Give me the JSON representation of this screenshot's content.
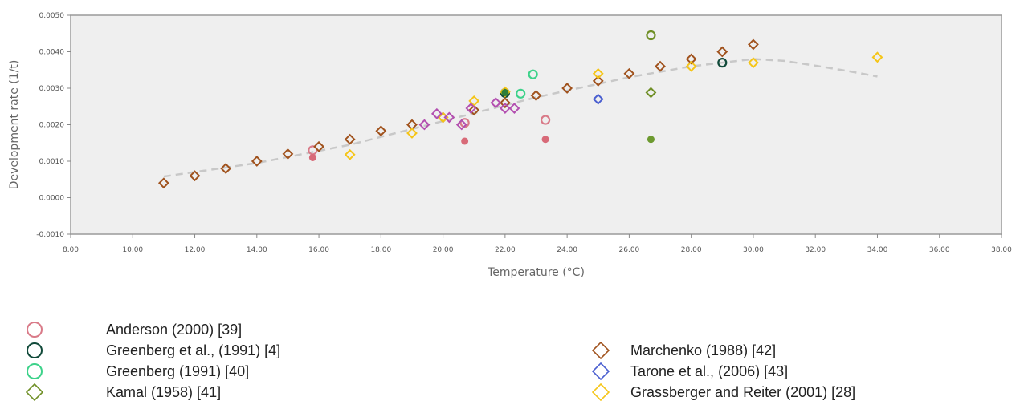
{
  "chart_data": {
    "type": "scatter",
    "xlabel": "Temperature (°C)",
    "ylabel": "Development rate (1/t)",
    "xlim": [
      8,
      38
    ],
    "ylim": [
      -0.001,
      0.005
    ],
    "x_ticks": [
      "8.00",
      "10.00",
      "12.00",
      "14.00",
      "16.00",
      "18.00",
      "20.00",
      "22.00",
      "24.00",
      "26.00",
      "28.00",
      "30.00",
      "32.00",
      "34.00",
      "36.00",
      "38.00"
    ],
    "y_ticks": [
      "-0.0010",
      "0.0000",
      "0.0010",
      "0.0020",
      "0.0030",
      "0.0040",
      "0.0050"
    ],
    "grid": false,
    "background": "#efefef",
    "legend_position": "bottom",
    "trend_line": {
      "style": "dashed",
      "color": "#c8c8c8",
      "points": [
        [
          11,
          0.00058
        ],
        [
          14,
          0.00095
        ],
        [
          17,
          0.00145
        ],
        [
          20,
          0.0021
        ],
        [
          23,
          0.00275
        ],
        [
          26,
          0.0033
        ],
        [
          28,
          0.0036
        ],
        [
          30,
          0.0038
        ],
        [
          31,
          0.00375
        ],
        [
          32,
          0.00362
        ],
        [
          33,
          0.00348
        ],
        [
          34,
          0.00332
        ]
      ]
    },
    "series": [
      {
        "name": "Anderson (2000) [39]",
        "marker": "circle",
        "color": "#d97a88",
        "points": [
          [
            15.8,
            0.0013
          ],
          [
            20.7,
            0.00205
          ],
          [
            23.3,
            0.00213
          ]
        ]
      },
      {
        "name": "Greenberg et al., (1991) [4]",
        "marker": "circle",
        "color": "#114a3a",
        "points": [
          [
            22,
            0.00287
          ],
          [
            29,
            0.0037
          ]
        ]
      },
      {
        "name": "Greenberg (1991) [40]",
        "marker": "circle",
        "color": "#3dd28a",
        "points": [
          [
            22.5,
            0.00285
          ],
          [
            22.9,
            0.00338
          ]
        ]
      },
      {
        "name": "Kamal (1958) [41]",
        "marker": "diamond",
        "color": "#6f8f26",
        "points": [
          [
            26.7,
            0.00288
          ]
        ]
      },
      {
        "name": "Marchenko (1988) [42]",
        "marker": "diamond",
        "color": "#a0521d",
        "points": [
          [
            11,
            0.0004
          ],
          [
            12,
            0.0006
          ],
          [
            13,
            0.0008
          ],
          [
            14,
            0.001
          ],
          [
            15,
            0.0012
          ],
          [
            16,
            0.0014
          ],
          [
            17,
            0.0016
          ],
          [
            18,
            0.00183
          ],
          [
            19,
            0.002
          ],
          [
            20,
            0.0022
          ],
          [
            21,
            0.0024
          ],
          [
            22,
            0.0026
          ],
          [
            23,
            0.0028
          ],
          [
            24,
            0.003
          ],
          [
            25,
            0.0032
          ],
          [
            26,
            0.0034
          ],
          [
            27,
            0.0036
          ],
          [
            28,
            0.0038
          ],
          [
            29,
            0.004
          ],
          [
            30,
            0.0042
          ]
        ]
      },
      {
        "name": "Tarone et al., (2006) [43]",
        "marker": "diamond",
        "color": "#4a5fd0",
        "points": [
          [
            25,
            0.0027
          ]
        ]
      },
      {
        "name": "Grassberger and Reiter (2001) [28]",
        "marker": "diamond",
        "color": "#f5c518",
        "points": [
          [
            17,
            0.00118
          ],
          [
            19,
            0.00177
          ],
          [
            20,
            0.0022
          ],
          [
            21,
            0.00265
          ],
          [
            22,
            0.0029
          ],
          [
            25,
            0.0034
          ],
          [
            28,
            0.0036
          ],
          [
            30,
            0.0037
          ],
          [
            34,
            0.00385
          ]
        ]
      },
      {
        "marker": "diamond",
        "color": "#b34fb0",
        "points": [
          [
            19.4,
            0.002
          ],
          [
            19.8,
            0.0023
          ],
          [
            20.2,
            0.0022
          ],
          [
            20.6,
            0.002
          ],
          [
            20.9,
            0.00245
          ],
          [
            21.7,
            0.0026
          ],
          [
            22,
            0.00245
          ],
          [
            22.3,
            0.00245
          ]
        ]
      },
      {
        "marker": "filled-circle",
        "color": "#d86a78",
        "points": [
          [
            15.8,
            0.0011
          ],
          [
            20.7,
            0.00155
          ],
          [
            23.3,
            0.0016
          ]
        ]
      },
      {
        "marker": "filled-circle",
        "color": "#6d9a30",
        "points": [
          [
            26.7,
            0.0016
          ]
        ]
      },
      {
        "marker": "filled-circle",
        "color": "#2e7d3a",
        "points": [
          [
            22,
            0.00288
          ]
        ]
      },
      {
        "marker": "circle",
        "color": "#6f8f26",
        "points": [
          [
            26.7,
            0.00445
          ]
        ]
      }
    ]
  },
  "legend_left": [
    {
      "label": "Anderson (2000) [39]",
      "icon": "circle-icon",
      "color": "#d97a88"
    },
    {
      "label": "Greenberg et al., (1991) [4]",
      "icon": "circle-icon",
      "color": "#114a3a"
    },
    {
      "label": "Greenberg (1991) [40]",
      "icon": "circle-icon",
      "color": "#3dd28a"
    },
    {
      "label": "Kamal (1958) [41]",
      "icon": "diamond-icon",
      "color": "#6f8f26"
    }
  ],
  "legend_right": [
    {
      "label": "Marchenko (1988) [42]",
      "icon": "diamond-icon",
      "color": "#a0521d"
    },
    {
      "label": "Tarone et al., (2006) [43]",
      "icon": "diamond-icon",
      "color": "#4a5fd0"
    },
    {
      "label": "Grassberger and Reiter (2001) [28]",
      "icon": "diamond-icon",
      "color": "#f5c518"
    }
  ]
}
